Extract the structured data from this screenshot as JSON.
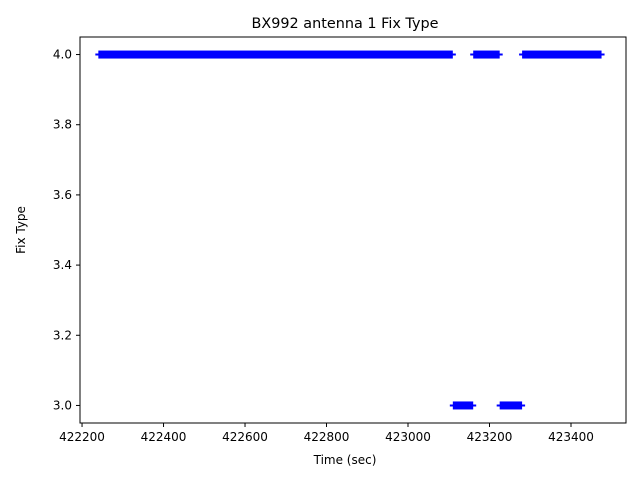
{
  "chart_data": {
    "type": "scatter",
    "title": "BX992 antenna 1 Fix Type",
    "xlabel": "Time (sec)",
    "ylabel": "Fix Type",
    "xlim": [
      422195,
      423535
    ],
    "ylim": [
      2.95,
      4.05
    ],
    "xticks": [
      422200,
      422400,
      422600,
      422800,
      423000,
      423200,
      423400
    ],
    "xtick_labels": [
      "422200",
      "422400",
      "422600",
      "422800",
      "423000",
      "423200",
      "423400"
    ],
    "yticks": [
      3.0,
      3.2,
      3.4,
      3.6,
      3.8,
      4.0
    ],
    "ytick_labels": [
      "3.0",
      "3.2",
      "3.4",
      "3.6",
      "3.8",
      "4.0"
    ],
    "grid": false,
    "marker": "plus",
    "color": "#0000ff",
    "series": [
      {
        "segments": [
          {
            "x_start": 422240,
            "x_end": 423110,
            "y": 4.0
          },
          {
            "x_start": 423160,
            "x_end": 423225,
            "y": 4.0
          },
          {
            "x_start": 423280,
            "x_end": 423475,
            "y": 4.0
          },
          {
            "x_start": 423110,
            "x_end": 423160,
            "y": 3.0
          },
          {
            "x_start": 423225,
            "x_end": 423280,
            "y": 3.0
          }
        ]
      }
    ]
  }
}
